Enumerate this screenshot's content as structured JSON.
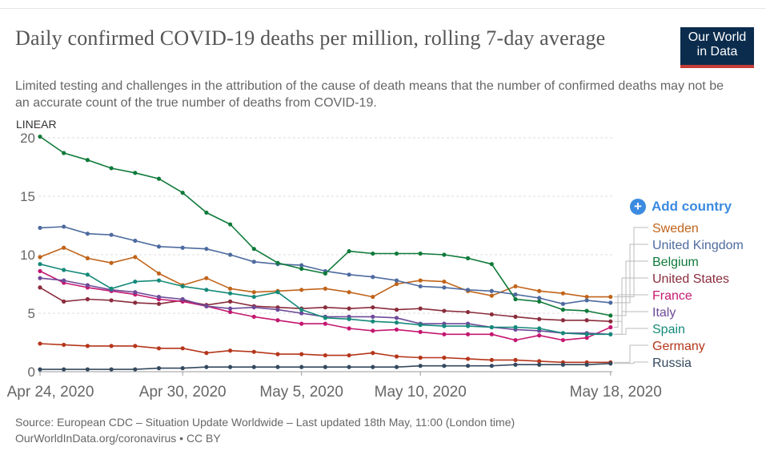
{
  "header": {
    "title": "Daily confirmed COVID-19 deaths per million, rolling 7-day average",
    "subtitle": "Limited testing and challenges in the attribution of the cause of death means that the number of confirmed deaths may not be an accurate count of the true number of deaths from COVID-19."
  },
  "logo": {
    "line1": "Our World",
    "line2": "in Data",
    "bg": "#0b2c4d",
    "accent": "#c43d37"
  },
  "controls": {
    "scale": "LINEAR",
    "add_country": "Add country",
    "add_icon": "plus-circle-icon"
  },
  "footer": {
    "source": "Source: European CDC – Situation Update Worldwide – Last updated 18th May, 11:00 (London time)",
    "license": "OurWorldInData.org/coronavirus • CC BY"
  },
  "chart_data": {
    "type": "line",
    "x": [
      "Apr 24",
      "Apr 25",
      "Apr 26",
      "Apr 27",
      "Apr 28",
      "Apr 29",
      "Apr 30",
      "May 1",
      "May 2",
      "May 3",
      "May 4",
      "May 5",
      "May 6",
      "May 7",
      "May 8",
      "May 9",
      "May 10",
      "May 11",
      "May 12",
      "May 13",
      "May 14",
      "May 15",
      "May 16",
      "May 17",
      "May 18"
    ],
    "x_ticks": [
      {
        "index": 0,
        "label": "Apr 24, 2020"
      },
      {
        "index": 6,
        "label": "Apr 30, 2020"
      },
      {
        "index": 11,
        "label": "May 5, 2020"
      },
      {
        "index": 16,
        "label": "May 10, 2020"
      },
      {
        "index": 24,
        "label": "May 18, 2020"
      }
    ],
    "y_ticks": [
      0,
      5,
      10,
      15,
      20
    ],
    "ylim": [
      0,
      20
    ],
    "grid": "horizontal dashed",
    "legend_position": "right",
    "series": [
      {
        "name": "Sweden",
        "color": "#c0641a",
        "values": [
          9.8,
          10.6,
          9.7,
          9.3,
          9.8,
          8.4,
          7.4,
          8.0,
          7.1,
          6.8,
          6.9,
          7.0,
          7.1,
          6.8,
          6.4,
          7.5,
          7.8,
          7.7,
          6.9,
          6.5,
          7.3,
          6.9,
          6.7,
          6.4,
          6.4
        ]
      },
      {
        "name": "United Kingdom",
        "color": "#4e6b9f",
        "values": [
          12.3,
          12.4,
          11.8,
          11.7,
          11.2,
          10.7,
          10.6,
          10.5,
          10.0,
          9.4,
          9.2,
          9.1,
          8.6,
          8.3,
          8.1,
          7.8,
          7.3,
          7.2,
          7.0,
          6.9,
          6.6,
          6.3,
          5.8,
          6.1,
          5.9
        ]
      },
      {
        "name": "Belgium",
        "color": "#0f7a3a",
        "values": [
          20.1,
          18.7,
          18.1,
          17.4,
          17.0,
          16.5,
          15.3,
          13.6,
          12.6,
          10.5,
          9.3,
          8.8,
          8.4,
          10.3,
          10.1,
          10.1,
          10.1,
          10.0,
          9.7,
          9.2,
          6.2,
          6.0,
          5.3,
          5.2,
          4.8
        ]
      },
      {
        "name": "United States",
        "color": "#8a2c3c",
        "values": [
          7.2,
          6.0,
          6.2,
          6.1,
          5.9,
          5.8,
          6.1,
          5.7,
          6.0,
          5.6,
          5.5,
          5.4,
          5.5,
          5.4,
          5.5,
          5.3,
          5.4,
          5.2,
          5.1,
          4.9,
          4.7,
          4.5,
          4.4,
          4.4,
          4.3
        ]
      },
      {
        "name": "France",
        "color": "#c41870",
        "values": [
          8.6,
          7.6,
          7.2,
          6.9,
          6.6,
          6.2,
          6.0,
          5.6,
          5.1,
          4.7,
          4.4,
          4.1,
          4.1,
          3.7,
          3.5,
          3.6,
          3.4,
          3.2,
          3.2,
          3.2,
          2.7,
          3.1,
          2.7,
          2.9,
          3.8
        ]
      },
      {
        "name": "Italy",
        "color": "#6d4a99",
        "values": [
          8.0,
          7.8,
          7.4,
          7.0,
          6.8,
          6.4,
          6.2,
          5.6,
          5.4,
          5.5,
          5.3,
          5.0,
          4.7,
          4.7,
          4.7,
          4.6,
          4.1,
          4.1,
          4.1,
          3.8,
          3.6,
          3.5,
          3.3,
          3.3,
          3.2
        ]
      },
      {
        "name": "Spain",
        "color": "#158a7a",
        "values": [
          9.2,
          8.7,
          8.3,
          7.1,
          7.7,
          7.8,
          7.3,
          7.0,
          6.7,
          6.4,
          6.8,
          5.3,
          4.6,
          4.5,
          4.3,
          4.2,
          4.0,
          3.9,
          3.9,
          3.8,
          3.8,
          3.7,
          3.3,
          3.2,
          3.2
        ]
      },
      {
        "name": "Germany",
        "color": "#b5361b",
        "values": [
          2.4,
          2.3,
          2.2,
          2.2,
          2.2,
          2.0,
          2.0,
          1.6,
          1.8,
          1.7,
          1.5,
          1.5,
          1.4,
          1.4,
          1.6,
          1.3,
          1.2,
          1.2,
          1.1,
          1.0,
          1.0,
          0.9,
          0.8,
          0.8,
          0.8
        ]
      },
      {
        "name": "Russia",
        "color": "#34495e",
        "values": [
          0.2,
          0.2,
          0.2,
          0.2,
          0.2,
          0.3,
          0.3,
          0.4,
          0.4,
          0.4,
          0.4,
          0.4,
          0.4,
          0.4,
          0.4,
          0.4,
          0.5,
          0.5,
          0.5,
          0.5,
          0.6,
          0.6,
          0.6,
          0.6,
          0.7
        ]
      }
    ]
  }
}
